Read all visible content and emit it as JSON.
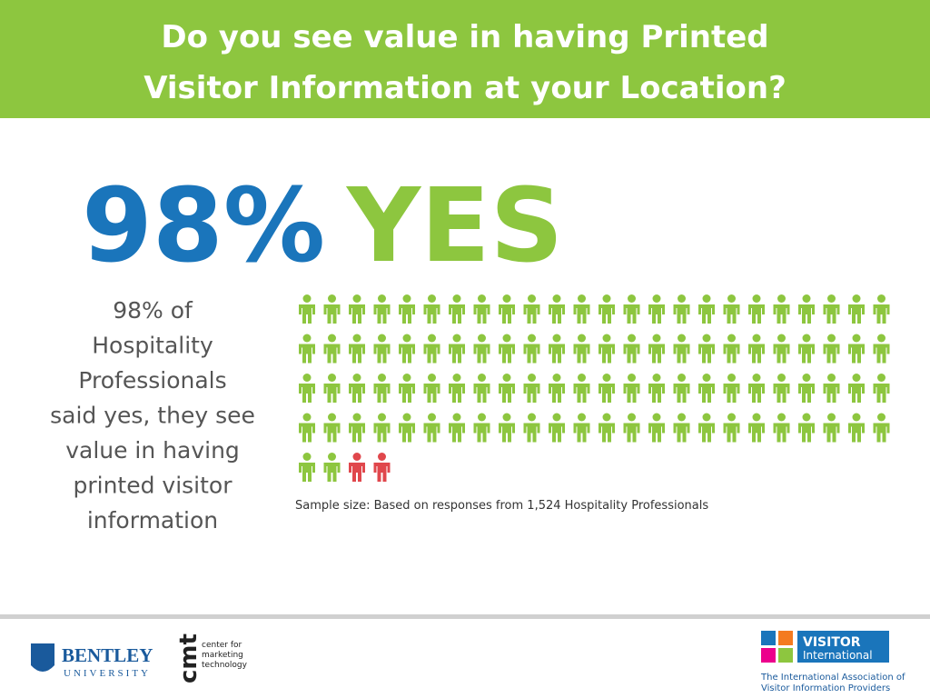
{
  "header": {
    "title_lines": [
      "Do you see value in having Printed",
      "Visitor Information at your Location?"
    ]
  },
  "headline": {
    "percent": "98%",
    "word": "YES"
  },
  "description_lines": [
    "98% of",
    "Hospitality",
    "Professionals",
    "said yes, they see",
    "value in having",
    "printed visitor",
    "information"
  ],
  "icon_chart": {
    "values": [
      98,
      2
    ],
    "colors": [
      "#8dc63f",
      "#e0474c"
    ]
  },
  "note": "Sample size:  Based on responses from 1,524 Hospitality Professionals",
  "footer": {
    "bentley": "BENTLEY",
    "university": "UNIVERSITY",
    "cmt": "cmt",
    "cmt_lines": [
      "center for",
      "marketing",
      "technology"
    ],
    "visitor": "VISITOR",
    "international": "International",
    "association_lines": [
      "The International Association of",
      "Visitor Information Providers"
    ]
  }
}
